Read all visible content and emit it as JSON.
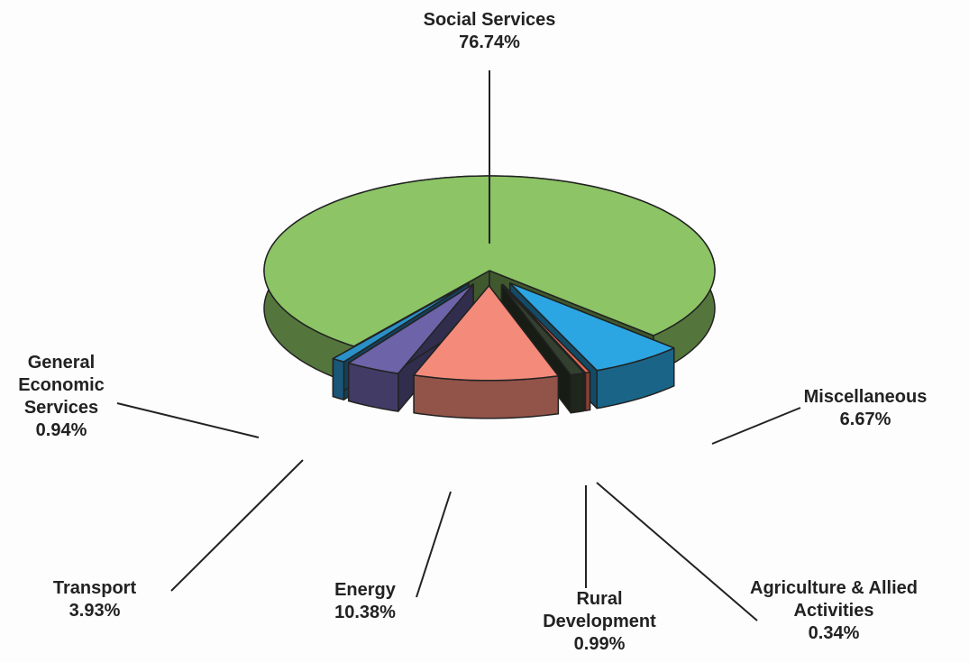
{
  "chart_data": {
    "type": "pie",
    "view": "3d-exploded",
    "categories": [
      "Social Services",
      "Miscellaneous",
      "Agriculture & Allied Activities",
      "Rural Development",
      "Energy",
      "Transport",
      "General Economic Services"
    ],
    "values": [
      76.74,
      6.67,
      0.34,
      0.99,
      10.38,
      3.93,
      0.94
    ],
    "value_labels": [
      "76.74%",
      "6.67%",
      "0.34%",
      "0.99%",
      "10.38%",
      "3.93%",
      "0.94%"
    ],
    "colors": [
      "#8cc466",
      "#2ba6e2",
      "#e86a52",
      "#33402f",
      "#f48a7a",
      "#6c63a8",
      "#2a90c8"
    ]
  }
}
